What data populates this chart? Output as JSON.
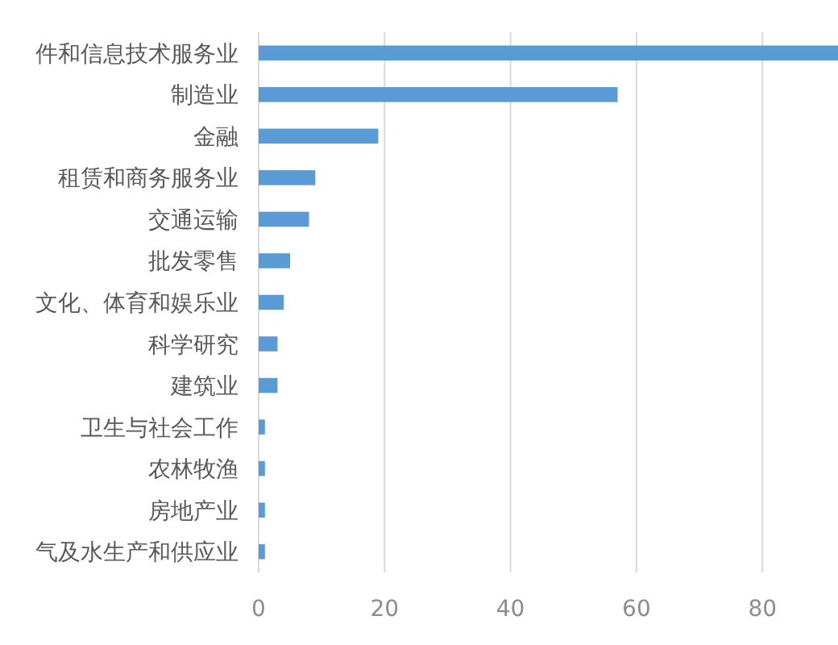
{
  "chart_data": {
    "type": "bar",
    "orientation": "horizontal",
    "categories": [
      "件和信息技术服务业",
      "制造业",
      "金融",
      "租赁和商务服务业",
      "交通运输",
      "批发零售",
      "文化、体育和娱乐业",
      "科学研究",
      "建筑业",
      "卫生与社会工作",
      "农林牧渔",
      "房地产业",
      "气及水生产和供应业"
    ],
    "values": [
      92,
      57,
      19,
      9,
      8,
      5,
      4,
      3,
      3,
      1,
      1,
      1,
      1
    ],
    "color": "#5b9bd5",
    "xlim": [
      0,
      92
    ],
    "xticks": [
      0,
      20,
      40,
      60,
      80
    ],
    "grid": "x"
  }
}
